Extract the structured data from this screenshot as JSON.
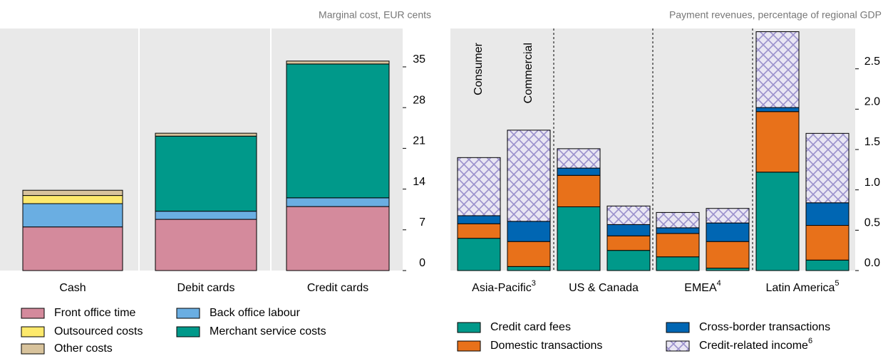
{
  "chart_data": [
    {
      "type": "bar",
      "stacked": true,
      "y_label": "Marginal cost, EUR cents",
      "categories": [
        "Cash",
        "Debit cards",
        "Credit cards"
      ],
      "series": [
        {
          "name": "Front office time",
          "color": "#d48a9c",
          "values": [
            7.5,
            8.8,
            11.0
          ]
        },
        {
          "name": "Back office labour",
          "color": "#6aaee2",
          "values": [
            4.0,
            1.4,
            1.5
          ]
        },
        {
          "name": "Outsourced costs",
          "color": "#fde96c",
          "values": [
            1.4,
            0,
            0
          ]
        },
        {
          "name": "Merchant service costs",
          "color": "#00998a",
          "values": [
            0,
            12.9,
            23.0
          ]
        },
        {
          "name": "Other costs",
          "color": "#d8c39c",
          "values": [
            0.9,
            0.5,
            0.5
          ]
        }
      ],
      "ylim": [
        0,
        41.6
      ],
      "yticks": [
        0,
        7,
        14,
        21,
        28,
        35
      ]
    },
    {
      "type": "bar",
      "stacked": true,
      "y_label": "Payment revenues, percentage of regional GDP",
      "categories": [
        "Consumer",
        "Commercial",
        null,
        null,
        null,
        null,
        null,
        null
      ],
      "groups": [
        {
          "label": "Asia-Pacific",
          "note": "3"
        },
        {
          "label": "US & Canada"
        },
        {
          "label": "EMEA",
          "note": "4"
        },
        {
          "label": "Latin America",
          "note": "5"
        }
      ],
      "series": [
        {
          "name": "Credit card fees",
          "color": "#00998a",
          "values": [
            0.4,
            0.05,
            0.79,
            0.25,
            0.17,
            0.03,
            1.22,
            0.13
          ]
        },
        {
          "name": "Domestic transactions",
          "color": "#e8711a",
          "values": [
            0.18,
            0.31,
            0.39,
            0.18,
            0.29,
            0.33,
            0.75,
            0.43
          ]
        },
        {
          "name": "Cross-border transactions",
          "color": "#0066b3",
          "values": [
            0.1,
            0.25,
            0.09,
            0.14,
            0.07,
            0.23,
            0.05,
            0.28
          ]
        },
        {
          "name": "Credit-related income",
          "note": "6",
          "color": "#9a90cc",
          "hatch": true,
          "values": [
            0.72,
            1.13,
            0.24,
            0.23,
            0.19,
            0.18,
            0.94,
            0.86
          ]
        }
      ],
      "ylim": [
        0,
        3.0
      ],
      "yticks": [
        {
          "value": 0,
          "label": "0.0"
        },
        0.5,
        {
          "value": 1,
          "label": "1.0"
        },
        1.5,
        {
          "value": 2,
          "label": "2.0"
        },
        2.5
      ]
    }
  ]
}
